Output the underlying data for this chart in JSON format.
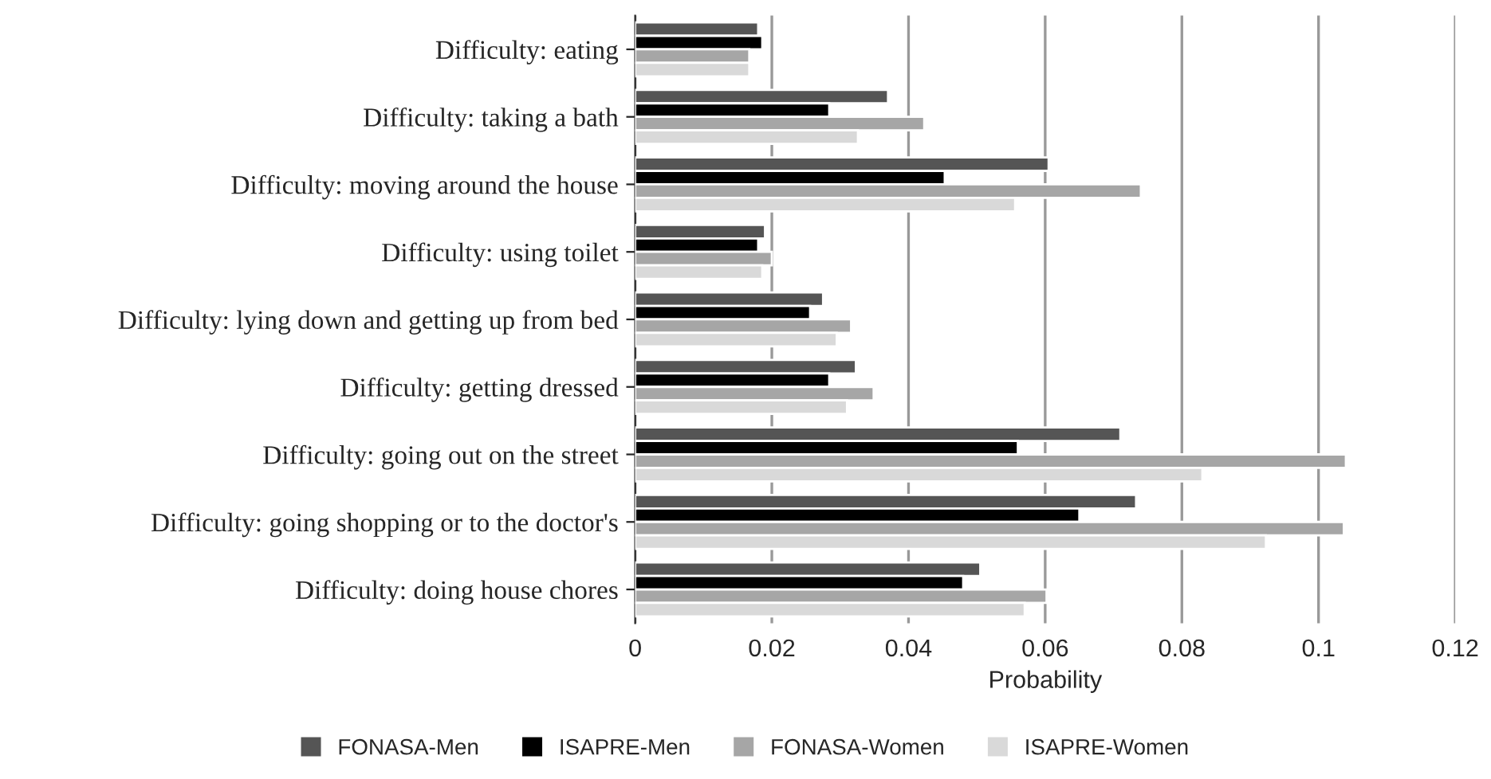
{
  "chart_data": {
    "type": "bar",
    "orientation": "horizontal",
    "xlabel": "Probability",
    "categories": [
      "Difficulty: eating",
      "Difficulty: taking a bath",
      "Difficulty: moving around the house",
      "Difficulty: using toilet",
      "Difficulty: lying down and getting up from bed",
      "Difficulty: getting dressed",
      "Difficulty: going out on the street",
      "Difficulty: going shopping or to the doctor's",
      "Difficulty: doing house chores"
    ],
    "series": [
      {
        "name": "FONASA-Men",
        "color": "#555555",
        "values": [
          0.018,
          0.037,
          0.0605,
          0.019,
          0.0275,
          0.0323,
          0.071,
          0.0733,
          0.0505
        ]
      },
      {
        "name": "ISAPRE-Men",
        "color": "#000000",
        "values": [
          0.0186,
          0.0284,
          0.0453,
          0.018,
          0.0256,
          0.0284,
          0.056,
          0.065,
          0.048
        ]
      },
      {
        "name": "FONASA-Women",
        "color": "#a6a6a6",
        "values": [
          0.0167,
          0.0423,
          0.074,
          0.02,
          0.0316,
          0.0349,
          0.104,
          0.1037,
          0.0602
        ]
      },
      {
        "name": "ISAPRE-Women",
        "color": "#d9d9d9",
        "values": [
          0.0167,
          0.0326,
          0.0556,
          0.0186,
          0.0295,
          0.031,
          0.083,
          0.0923,
          0.057
        ]
      }
    ],
    "xlim": [
      0,
      0.12
    ],
    "xticks": [
      0,
      0.02,
      0.04,
      0.06,
      0.08,
      0.1,
      0.12
    ],
    "grid": "x",
    "legend": "bottom"
  }
}
